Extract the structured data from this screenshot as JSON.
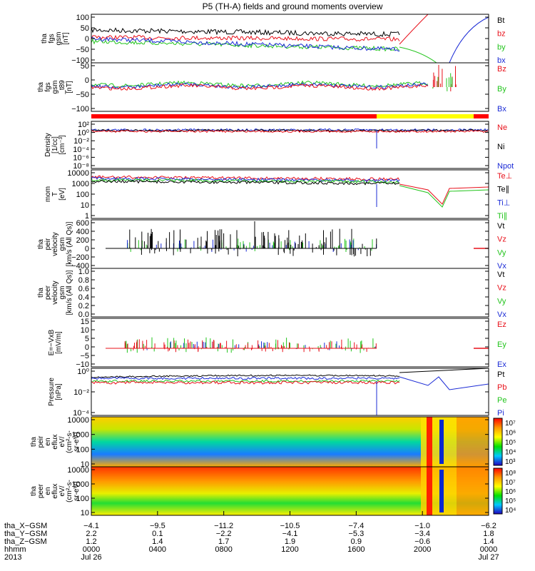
{
  "chart_data": {
    "type": "line",
    "title": "P5 (TH-A) fields and ground moments overview",
    "panels": [
      {
        "ylabel": [
          "tha",
          "fgs",
          "gsm",
          "[nT]"
        ],
        "yticks": [
          "100",
          "50",
          "0",
          "−50",
          "−100"
        ],
        "legend": [
          {
            "text": "Bt",
            "color": "#000000"
          },
          {
            "text": "bz",
            "color": "#e8101a"
          },
          {
            "text": "by",
            "color": "#22c41c"
          },
          {
            "text": "bx",
            "color": "#1b2bd6"
          }
        ]
      },
      {
        "ylabel": [
          "tha",
          "fgs",
          "gsm",
          "_t89",
          "[nT]"
        ],
        "yticks": [
          "50",
          "0",
          "−50",
          "−100"
        ],
        "legend": [
          {
            "text": "Bz",
            "color": "#e8101a"
          },
          {
            "text": "By",
            "color": "#22c41c"
          },
          {
            "text": "Bx",
            "color": "#1b2bd6"
          }
        ]
      },
      {
        "ylabel": [
          "Density",
          "[1/cc]",
          "[cm⁻³]"
        ],
        "yticks": [
          "10²",
          "10⁰",
          "10⁻²",
          "10⁻⁴",
          "10⁻⁶",
          "10⁻⁸"
        ],
        "legend": [
          {
            "text": "Ne",
            "color": "#e8101a"
          },
          {
            "text": "Ni",
            "color": "#000000"
          },
          {
            "text": "Npot",
            "color": "#1b2bd6"
          }
        ]
      },
      {
        "ylabel": [
          "mom",
          "T",
          "[eV]"
        ],
        "yticks": [
          "10000",
          "1000",
          "100",
          "10",
          "1"
        ],
        "legend": [
          {
            "text": "Te⊥",
            "color": "#e8101a"
          },
          {
            "text": "Te∥",
            "color": "#000000"
          },
          {
            "text": "Ti⊥",
            "color": "#1b2bd6"
          },
          {
            "text": "Ti∥",
            "color": "#22c41c"
          }
        ]
      },
      {
        "ylabel": [
          "tha",
          "peir",
          "velocity",
          "gsm",
          "[km/s (All Qs)]"
        ],
        "yticks": [
          "600",
          "400",
          "200",
          "0",
          "−200",
          "−400"
        ],
        "legend": [
          {
            "text": "Vt",
            "color": "#000000"
          },
          {
            "text": "Vz",
            "color": "#e8101a"
          },
          {
            "text": "Vy",
            "color": "#22c41c"
          },
          {
            "text": "Vx",
            "color": "#1b2bd6"
          }
        ]
      },
      {
        "ylabel": [
          "tha",
          "peer",
          "velocity",
          "gsm",
          "[km/s (All Qs)]"
        ],
        "yticks": [
          "1.0",
          "0.8",
          "0.6",
          "0.4",
          "0.2",
          "0.0"
        ],
        "legend": [
          {
            "text": "Vt",
            "color": "#000000"
          },
          {
            "text": "Vz",
            "color": "#e8101a"
          },
          {
            "text": "Vy",
            "color": "#22c41c"
          },
          {
            "text": "Vx",
            "color": "#1b2bd6"
          }
        ]
      },
      {
        "ylabel": [
          "E=−VxB",
          "[mV/m]"
        ],
        "yticks": [
          "15",
          "10",
          "5",
          "0",
          "−5",
          "−10"
        ],
        "legend": [
          {
            "text": "Ez",
            "color": "#e8101a"
          },
          {
            "text": "Ey",
            "color": "#22c41c"
          },
          {
            "text": "Ex",
            "color": "#1b2bd6"
          }
        ]
      },
      {
        "ylabel": [
          "Pressure",
          "[nPa]"
        ],
        "yticks": [
          "10⁰",
          "10⁻²",
          "10⁻⁴"
        ],
        "legend": [
          {
            "text": "Pt",
            "color": "#000000"
          },
          {
            "text": "Pb",
            "color": "#e8101a"
          },
          {
            "text": "Pe",
            "color": "#22c41c"
          },
          {
            "text": "Pi",
            "color": "#1b2bd6"
          }
        ]
      },
      {
        "ylabel": [
          "tha",
          "peir",
          "en",
          "eflux",
          "eV/",
          "(cm²-s-",
          "sr-eV)"
        ],
        "yticks": [
          "10000",
          "1000",
          "100",
          "10"
        ],
        "colorbar": [
          "10⁷",
          "10⁶",
          "10⁵",
          "10⁴",
          "10³"
        ]
      },
      {
        "ylabel": [
          "tha",
          "peer",
          "en",
          "eflux",
          "eV/",
          "(cm²-s-",
          "sr-eV)"
        ],
        "yticks": [
          "10000",
          "1000",
          "100",
          "10"
        ],
        "colorbar": [
          "10⁸",
          "10⁷",
          "10⁶",
          "10⁵",
          "10⁴"
        ]
      }
    ],
    "xaxis": {
      "row_labels": [
        "tha_X−GSM",
        "tha_Y−GSM",
        "tha_Z−GSM",
        "hhmm",
        "2013"
      ],
      "columns": [
        {
          "X": "−4.1",
          "Y": "2.2",
          "Z": "1.2",
          "hhmm": "0000",
          "date": "Jul 26"
        },
        {
          "X": "−9.5",
          "Y": "0.1",
          "Z": "1.4",
          "hhmm": "0400",
          "date": ""
        },
        {
          "X": "−11.2",
          "Y": "−2.2",
          "Z": "1.7",
          "hhmm": "0800",
          "date": ""
        },
        {
          "X": "−10.5",
          "Y": "−4.1",
          "Z": "1.9",
          "hhmm": "1200",
          "date": ""
        },
        {
          "X": "−7.4",
          "Y": "−5.3",
          "Z": "0.9",
          "hhmm": "1600",
          "date": ""
        },
        {
          "X": "−1.0",
          "Y": "−3.4",
          "Z": "−0.6",
          "hhmm": "2000",
          "date": ""
        },
        {
          "X": "−6.2",
          "Y": "1.8",
          "Z": "1.4",
          "hhmm": "0000",
          "date": "Jul 27"
        }
      ]
    }
  }
}
